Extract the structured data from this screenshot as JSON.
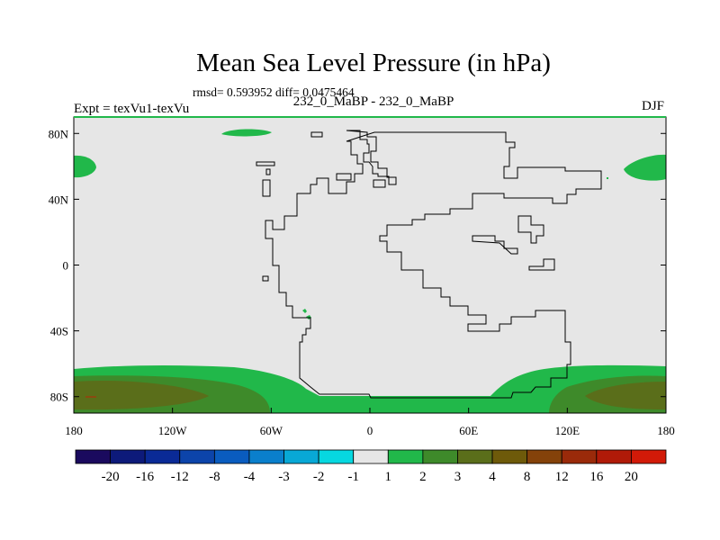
{
  "title": "Mean Sea Level Pressure (in hPa)",
  "rmsd_line": "rmsd= 0.593952 diff= 0.0475464",
  "subtitle": "232_0_MaBP - 232_0_MaBP",
  "expt_label": "Expt = texVu1-texVu",
  "season": "DJF",
  "axes": {
    "y_ticks": [
      "80N",
      "40N",
      "0",
      "40S",
      "80S"
    ],
    "y_values": [
      80,
      40,
      0,
      -40,
      -80
    ],
    "x_ticks": [
      "180",
      "120W",
      "60W",
      "0",
      "60E",
      "120E",
      "180"
    ],
    "x_values": [
      -180,
      -120,
      -60,
      0,
      60,
      120,
      180
    ],
    "lon_range": [
      -180,
      180
    ],
    "lat_range": [
      -90,
      90
    ]
  },
  "colorbar": {
    "labels": [
      "-20",
      "-16",
      "-12",
      "-8",
      "-4",
      "-3",
      "-2",
      "-1",
      "1",
      "2",
      "3",
      "4",
      "8",
      "12",
      "16",
      "20"
    ],
    "colors": [
      "#1a0a5e",
      "#0d1a7a",
      "#0a2a96",
      "#0c44aa",
      "#0a5cbf",
      "#0a7fcc",
      "#08a8d6",
      "#06d8e0",
      "#e6e6e6",
      "#21b84a",
      "#3e8a2a",
      "#5a6e1a",
      "#6e5a0a",
      "#84420a",
      "#9a2a0a",
      "#b01a08",
      "#d21a08"
    ]
  },
  "colors": {
    "background_fill": "#e6e6e6",
    "green_light": "#21b84a",
    "green_dark": "#3e8a2a",
    "olive": "#5a6e1a"
  }
}
